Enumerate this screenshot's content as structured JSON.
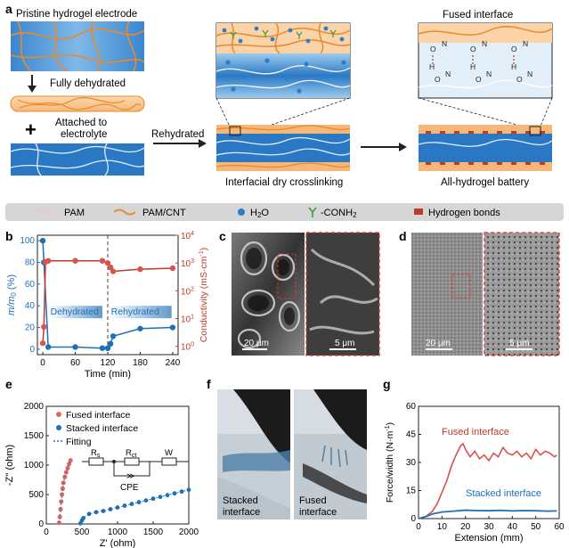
{
  "panel_labels": {
    "a": "a",
    "b": "b",
    "c": "c",
    "d": "d",
    "e": "e",
    "f": "f",
    "g": "g"
  },
  "panel_a": {
    "pristine_label": "Pristine hydrogel electrode",
    "dehydrated_label": "Fully dehydrated",
    "attached_label_1": "Attached to",
    "attached_label_2": "electrolyte",
    "plus": "+",
    "rehydrated_label": "Rehydrated",
    "interfacial_label": "Interfacial dry crosslinking",
    "fused_label": "Fused interface",
    "battery_label": "All-hydrogel battery",
    "chem_atoms": {
      "O": "O",
      "N": "N",
      "H": "H"
    }
  },
  "legend": {
    "pam": "PAM",
    "pam_cnt": "PAM/CNT",
    "h2o": "H",
    "h2o_sub": "2",
    "h2o_tail": "O",
    "conh2": "-CONH",
    "conh2_sub": "2",
    "hbonds": "Hydrogen bonds"
  },
  "colors": {
    "hydrogel_blue": "#2a78c4",
    "hydrogel_light": "#9ccbef",
    "cnt_orange": "#e88a2c",
    "red": "#c0392b",
    "blue_series": "#1f6fb5",
    "legend_bg": "#d6d6d6",
    "water": "#2a7fc8"
  },
  "chart_b": {
    "type": "line",
    "xlabel": "Time (min)",
    "ylabel_left_main": "m/m",
    "ylabel_left_sub": "0",
    "ylabel_left_tail": " (%)",
    "ylabel_right": "Conductivity (mS·cm",
    "ylabel_right_sup": "-1",
    "ylabel_right_tail": ")",
    "dehydrated": "Dehydrated",
    "rehydrated": "Rehydrated",
    "x_ticks": [
      0,
      60,
      120,
      180,
      240
    ],
    "y_left_ticks": [
      0,
      20,
      40,
      60,
      80,
      100
    ],
    "y_right_ticks": [
      "10",
      "10",
      "10",
      "10",
      "10"
    ],
    "y_right_exps": [
      "0",
      "1",
      "2",
      "3",
      "4"
    ],
    "xlim": [
      -10,
      250
    ],
    "ylim_left": [
      -5,
      105
    ],
    "ylim_right_log": [
      -0.3,
      4
    ],
    "divider_x": 120,
    "mass_series": {
      "x": [
        0,
        2,
        10,
        60,
        110,
        120,
        125,
        130,
        180,
        240
      ],
      "y": [
        100,
        80,
        2,
        2,
        1,
        1,
        5,
        12,
        19,
        20
      ]
    },
    "cond_series": {
      "x": [
        0,
        2,
        5,
        10,
        60,
        110,
        120,
        125,
        130,
        180,
        240
      ],
      "y": [
        1.3,
        5,
        1100,
        1200,
        1200,
        1200,
        1000,
        700,
        500,
        600,
        650
      ]
    }
  },
  "panel_c": {
    "scale_left": "20 μm",
    "scale_right": "5 μm"
  },
  "panel_d": {
    "scale_left": "20 μm",
    "scale_right": "5 μm"
  },
  "chart_e": {
    "type": "scatter",
    "xlabel": "Z' (ohm)",
    "ylabel": "-Z'' (ohm)",
    "x_ticks": [
      0,
      500,
      1000,
      1500,
      2000
    ],
    "y_ticks": [
      0,
      500,
      1000,
      1500,
      2000
    ],
    "xlim": [
      0,
      2000
    ],
    "ylim": [
      0,
      2000
    ],
    "legend": [
      "Fused interface",
      "Stacked interface",
      "Fitting"
    ],
    "circuit": {
      "rs": "R",
      "rs_sub": "s",
      "rct": "R",
      "rct_sub": "ct",
      "w": "W",
      "cpe": "CPE"
    },
    "fused": {
      "x": [
        180,
        190,
        200,
        210,
        220,
        230,
        240,
        260,
        280,
        300,
        320,
        340
      ],
      "y": [
        20,
        120,
        250,
        380,
        500,
        600,
        700,
        800,
        880,
        950,
        1020,
        1080
      ]
    },
    "stacked": {
      "x": [
        480,
        500,
        520,
        600,
        700,
        800,
        900,
        1000,
        1100,
        1200,
        1300,
        1400,
        1500,
        1600,
        1700,
        1800,
        1900,
        2000
      ],
      "y": [
        10,
        60,
        100,
        170,
        200,
        220,
        250,
        280,
        310,
        340,
        370,
        400,
        430,
        460,
        490,
        520,
        550,
        580
      ]
    }
  },
  "panel_f": {
    "left": [
      "Stacked",
      "interface"
    ],
    "right": [
      "Fused",
      "interface"
    ]
  },
  "chart_g": {
    "type": "line",
    "xlabel": "Extension (mm)",
    "ylabel": "Force/width (N·m",
    "ylabel_sup": "-1",
    "ylabel_tail": ")",
    "x_ticks": [
      0,
      10,
      20,
      30,
      40,
      50,
      60
    ],
    "y_ticks": [
      0,
      15,
      30,
      45,
      60
    ],
    "y_tick_labels": [
      "0",
      "15",
      "30",
      "45",
      "60"
    ],
    "xlim": [
      0,
      60
    ],
    "ylim": [
      0,
      60
    ],
    "fused_label": "Fused interface",
    "stacked_label": "Stacked interface",
    "fused": {
      "x": [
        0,
        3,
        6,
        8,
        10,
        12,
        14,
        16,
        18,
        19,
        20,
        22,
        24,
        26,
        28,
        30,
        32,
        34,
        36,
        38,
        40,
        42,
        44,
        46,
        48,
        50,
        52,
        54,
        56,
        58,
        59
      ],
      "y": [
        0,
        1,
        4,
        8,
        14,
        20,
        28,
        34,
        39,
        40,
        37,
        33,
        36,
        32,
        34,
        31,
        35,
        33,
        38,
        35,
        34,
        36,
        33,
        35,
        32,
        37,
        34,
        36,
        35,
        33,
        34
      ]
    },
    "stacked": {
      "x": [
        0,
        3,
        6,
        10,
        15,
        20,
        25,
        30,
        35,
        40,
        45,
        50,
        55,
        59
      ],
      "y": [
        0,
        1,
        2.5,
        3.5,
        4,
        4.5,
        4.3,
        4.2,
        4.4,
        4.1,
        4.3,
        4.2,
        4.0,
        4.1
      ]
    }
  }
}
